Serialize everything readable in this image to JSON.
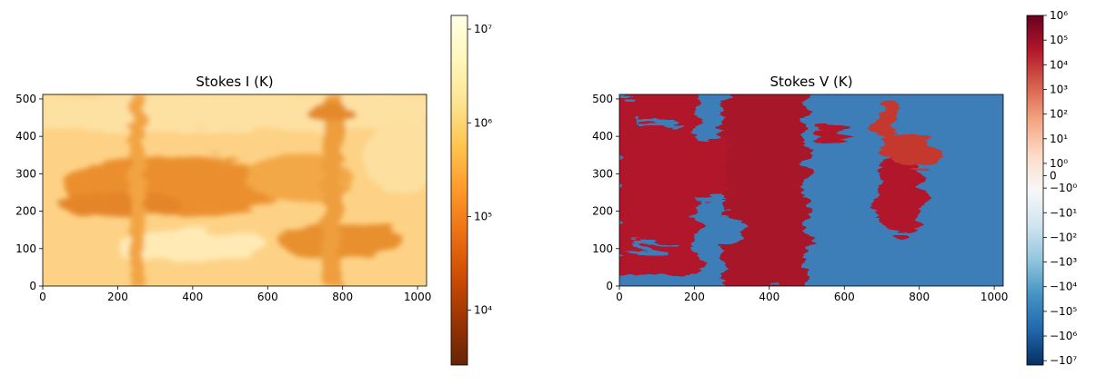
{
  "chart_data": [
    {
      "type": "heatmap",
      "title": "Stokes I (K)",
      "xlim": [
        0,
        1024
      ],
      "xticks": [
        0,
        200,
        400,
        600,
        800,
        1000
      ],
      "ylim": [
        0,
        512
      ],
      "yticks": [
        0,
        100,
        200,
        300,
        400,
        500
      ],
      "colorbar": {
        "scale": "log",
        "lim": [
          2600,
          14000000
        ],
        "ticks": [
          {
            "value": 10000,
            "label": "10⁴"
          },
          {
            "value": 100000,
            "label": "10⁵"
          },
          {
            "value": 1000000,
            "label": "10⁶"
          },
          {
            "value": 10000000,
            "label": "10⁷"
          }
        ],
        "colormap": [
          "#662506",
          "#993404",
          "#cc4c02",
          "#ec7014",
          "#fe9929",
          "#fec44f",
          "#fee391",
          "#fff7bc",
          "#ffffe5"
        ]
      }
    },
    {
      "type": "heatmap",
      "title": "Stokes V (K)",
      "xlim": [
        0,
        1024
      ],
      "xticks": [
        0,
        200,
        400,
        600,
        800,
        1000
      ],
      "ylim": [
        0,
        512
      ],
      "yticks": [
        0,
        100,
        200,
        300,
        400,
        500
      ],
      "colorbar": {
        "scale": "symlog",
        "lim": [
          -15000000,
          1000000
        ],
        "ticks": [
          {
            "value": 1000000,
            "label": "10⁶"
          },
          {
            "value": 100000,
            "label": "10⁵"
          },
          {
            "value": 10000,
            "label": "10⁴"
          },
          {
            "value": 1000,
            "label": "10³"
          },
          {
            "value": 100,
            "label": "10²"
          },
          {
            "value": 10,
            "label": "10¹"
          },
          {
            "value": 1,
            "label": "10⁰"
          },
          0,
          {
            "value": -1,
            "label": "−10⁰"
          },
          {
            "value": -10,
            "label": "−10¹"
          },
          {
            "value": -100,
            "label": "−10²"
          },
          {
            "value": -1000,
            "label": "−10³"
          },
          {
            "value": -10000,
            "label": "−10⁴"
          },
          {
            "value": -100000,
            "label": "−10⁵"
          },
          {
            "value": -1000000,
            "label": "−10⁶"
          },
          {
            "value": -10000000,
            "label": "−10⁷"
          }
        ],
        "colormap": [
          "#053061",
          "#2166ac",
          "#4393c3",
          "#92c5de",
          "#d1e5f0",
          "#f7f7f7",
          "#fddbc7",
          "#f4a582",
          "#d6604d",
          "#b2182b",
          "#67001f"
        ]
      }
    }
  ]
}
